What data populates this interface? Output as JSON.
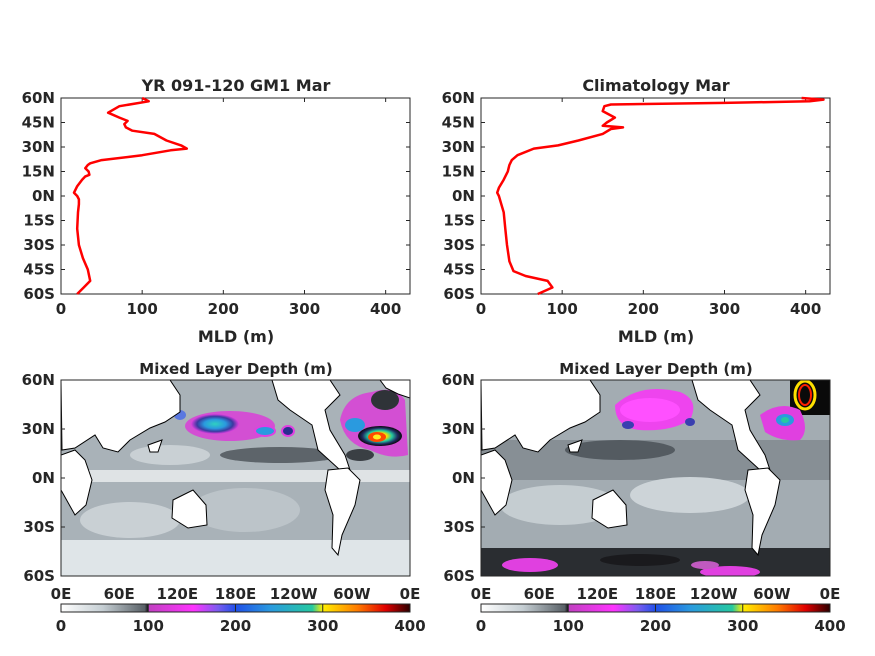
{
  "chart_data": [
    {
      "type": "line",
      "title": "YR 091-120 GM1 Mar",
      "xlabel": "MLD (m)",
      "ylabel": "",
      "xlim": [
        0,
        430
      ],
      "ylim": [
        -60,
        60
      ],
      "xticks": [
        "0",
        "100",
        "200",
        "300",
        "400"
      ],
      "yticks": [
        "60N",
        "45N",
        "30N",
        "15N",
        "0N",
        "15S",
        "30S",
        "45S",
        "60S"
      ],
      "color": "#ff0000",
      "series": [
        {
          "x": [
            20,
            28,
            36,
            33,
            27,
            22,
            20,
            21,
            22,
            22,
            20,
            16,
            20,
            26,
            30,
            35,
            34,
            30,
            33,
            36,
            50,
            85,
            100,
            135,
            155,
            148,
            130,
            115,
            88,
            80,
            78,
            82,
            72,
            58,
            72,
            108,
            100
          ],
          "y": [
            -60,
            -56,
            -52,
            -45,
            -38,
            -30,
            -20,
            -10,
            -5,
            -2,
            0,
            2,
            6,
            10,
            12,
            13,
            15,
            17,
            19,
            20,
            22,
            24,
            25,
            28,
            29,
            31,
            34,
            38,
            40,
            42,
            44,
            46,
            48,
            51,
            55,
            58,
            60
          ]
        }
      ]
    },
    {
      "type": "line",
      "title": "Climatology Mar",
      "xlabel": "MLD (m)",
      "ylabel": "",
      "xlim": [
        0,
        430
      ],
      "ylim": [
        -60,
        60
      ],
      "xticks": [
        "0",
        "100",
        "200",
        "300",
        "400"
      ],
      "yticks": [
        "60N",
        "45N",
        "30N",
        "15N",
        "0N",
        "15S",
        "30S",
        "45S",
        "60S"
      ],
      "color": "#ff0000",
      "series": [
        {
          "x": [
            70,
            88,
            82,
            55,
            40,
            35,
            32,
            30,
            28,
            25,
            22,
            20,
            22,
            28,
            32,
            33,
            34,
            35,
            38,
            45,
            65,
            95,
            120,
            150,
            160,
            175,
            150,
            155,
            165,
            150,
            152,
            160,
            300,
            405,
            422,
            395
          ],
          "y": [
            -60,
            -56,
            -52,
            -49,
            -46,
            -40,
            -30,
            -20,
            -10,
            -5,
            0,
            2,
            5,
            10,
            14,
            15,
            17,
            19,
            22,
            25,
            29,
            31,
            34,
            38,
            41,
            42,
            43,
            45,
            48,
            52,
            55,
            56,
            57,
            58,
            59,
            60
          ]
        }
      ]
    },
    {
      "type": "heatmap",
      "title": "Mixed Layer Depth (m)",
      "xticks": [
        "0E",
        "60E",
        "120E",
        "180E",
        "120W",
        "60W",
        "0E"
      ],
      "yticks": [
        "60N",
        "30N",
        "0N",
        "30S",
        "60S"
      ],
      "colorbar_ticks": [
        "0",
        "100",
        "200",
        "300",
        "400"
      ],
      "colorbar_range": [
        0,
        400
      ]
    },
    {
      "type": "heatmap",
      "title": "Mixed Layer Depth (m)",
      "xticks": [
        "0E",
        "60E",
        "120E",
        "180E",
        "120W",
        "60W",
        "0E"
      ],
      "yticks": [
        "60N",
        "30N",
        "0N",
        "30S",
        "60S"
      ],
      "colorbar_ticks": [
        "0",
        "100",
        "200",
        "300",
        "400"
      ],
      "colorbar_range": [
        0,
        400
      ]
    }
  ]
}
